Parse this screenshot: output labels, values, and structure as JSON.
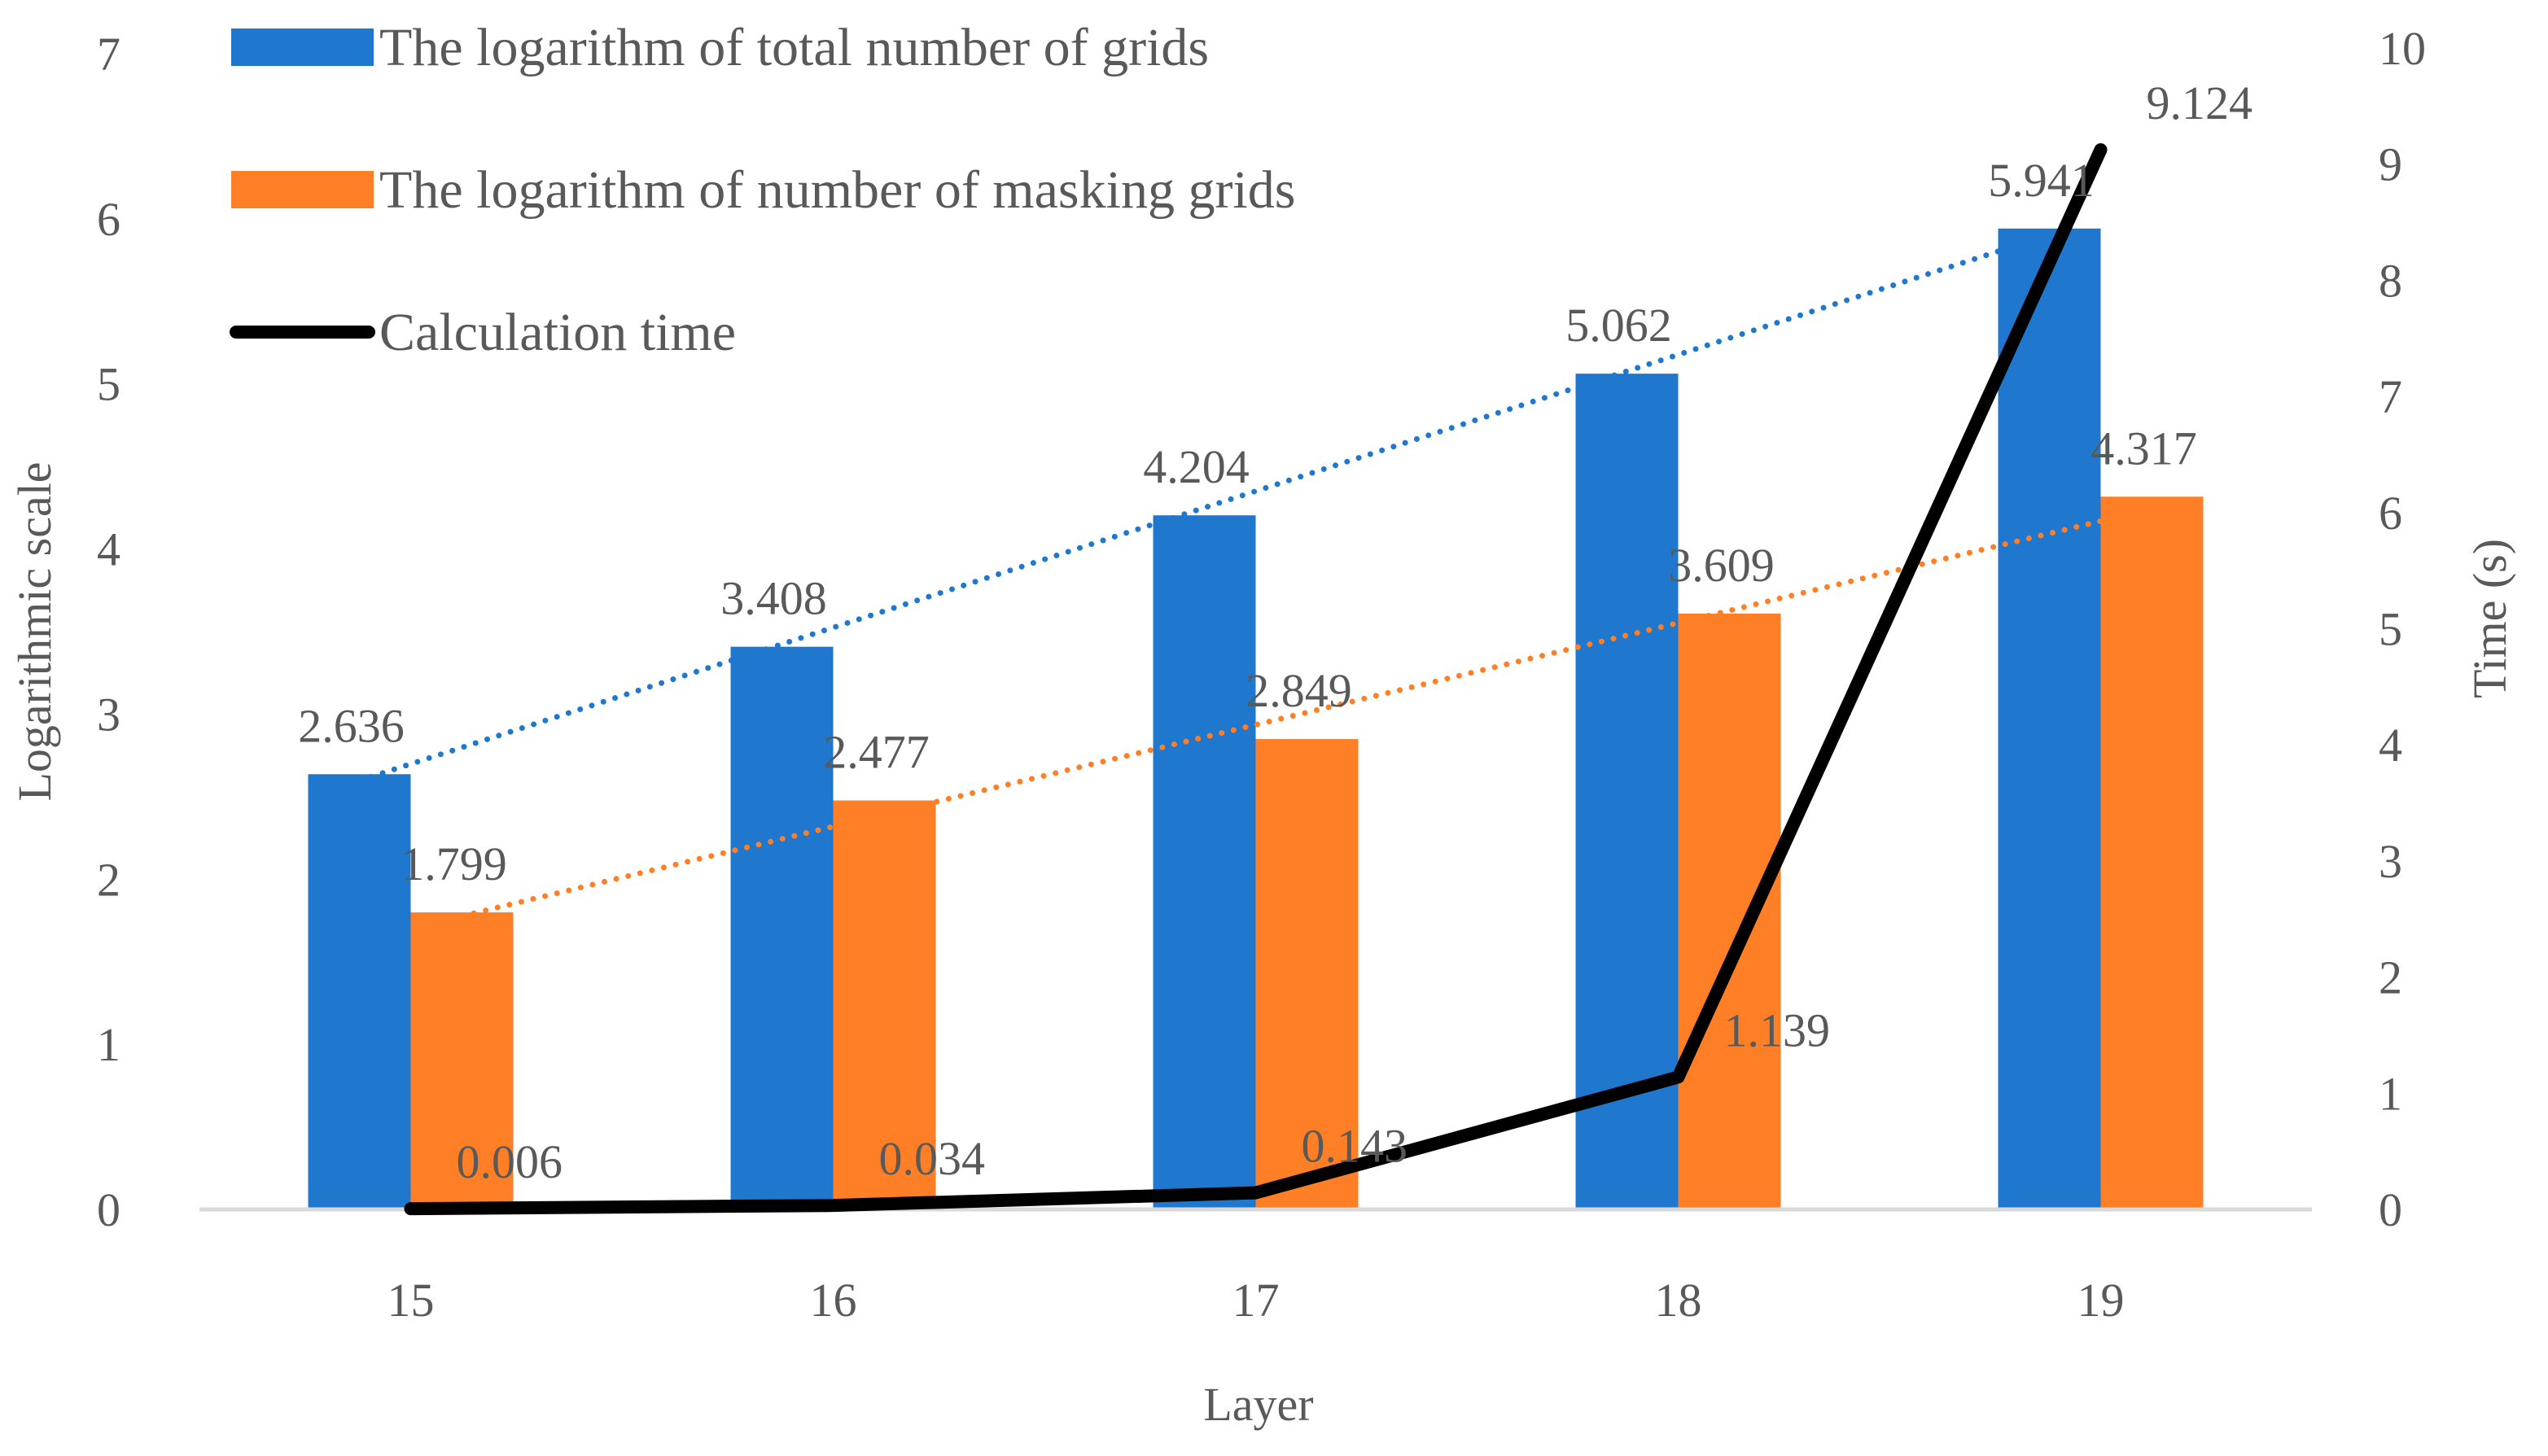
{
  "chart_data": {
    "type": "bar",
    "title": "",
    "categories": [
      "15",
      "16",
      "17",
      "18",
      "19"
    ],
    "xlabel": "Layer",
    "ylabel": "Logarithmic scale",
    "y2label": "Time (s)",
    "ylim": [
      0,
      7
    ],
    "y2lim": [
      0,
      10
    ],
    "yticks": [
      "0",
      "1",
      "2",
      "3",
      "4",
      "5",
      "6",
      "7"
    ],
    "y2ticks": [
      "0",
      "1",
      "2",
      "3",
      "4",
      "5",
      "6",
      "7",
      "8",
      "9",
      "10"
    ],
    "legend_position": "top-left",
    "grid": false,
    "series": [
      {
        "name": "The logarithm of total number of grids",
        "type": "bar",
        "axis": "left",
        "color": "#1F77CE",
        "values": [
          2.636,
          3.408,
          4.204,
          5.062,
          5.941
        ],
        "labels": [
          "2.636",
          "3.408",
          "4.204",
          "5.062",
          "5.941"
        ],
        "trendline": "linear, dotted"
      },
      {
        "name": "The logarithm of number of masking grids",
        "type": "bar",
        "axis": "left",
        "color": "#FF7F27",
        "values": [
          1.799,
          2.477,
          2.849,
          3.609,
          4.317
        ],
        "labels": [
          "1.799",
          "2.477",
          "2.849",
          "3.609",
          "4.317"
        ],
        "trendline": "linear, dotted"
      },
      {
        "name": "Calculation time",
        "type": "line",
        "axis": "right",
        "color": "#000000",
        "values": [
          0.006,
          0.034,
          0.143,
          1.139,
          9.124
        ],
        "labels": [
          "0.006",
          "0.034",
          "0.143",
          "1.139",
          "9.124"
        ]
      }
    ]
  }
}
